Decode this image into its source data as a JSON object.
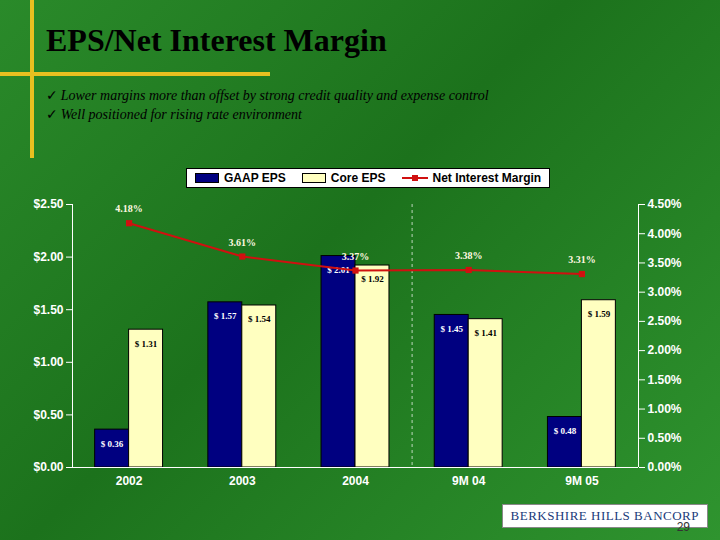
{
  "chart_data": {
    "type": "bar",
    "title": "EPS/Net Interest Margin",
    "annotations": [
      "Lower margins more than offset by strong credit quality and expense control",
      "Well positioned for rising rate environment"
    ],
    "categories": [
      "2002",
      "2003",
      "2004",
      "9M 04",
      "9M 05"
    ],
    "series": [
      {
        "name": "GAAP EPS",
        "type": "bar",
        "color": "#000080",
        "values": [
          0.36,
          1.57,
          2.01,
          1.45,
          0.48
        ],
        "value_labels": [
          "$ 0.36",
          "$ 1.57",
          "$ 2.01",
          "$ 1.45",
          "$ 0.48"
        ]
      },
      {
        "name": "Core EPS",
        "type": "bar",
        "color": "#ffffc0",
        "values": [
          1.31,
          1.54,
          1.92,
          1.41,
          1.59
        ],
        "value_labels": [
          "$ 1.31",
          "$ 1.54",
          "$ 1.92",
          "$ 1.41",
          "$ 1.59"
        ]
      },
      {
        "name": "Net Interest Margin",
        "type": "line",
        "axis": "y2",
        "color": "#d01010",
        "marker": "square",
        "values": [
          4.18,
          3.61,
          3.37,
          3.38,
          3.31
        ],
        "value_labels": [
          "4.18%",
          "3.61%",
          "3.37%",
          "3.38%",
          "3.31%"
        ]
      }
    ],
    "ylim": [
      0,
      2.5
    ],
    "yticks": [
      {
        "value": 0,
        "label": "$0.00"
      },
      {
        "value": 0.5,
        "label": "$0.50"
      },
      {
        "value": 1,
        "label": "$1.00"
      },
      {
        "value": 1.5,
        "label": "$1.50"
      },
      {
        "value": 2,
        "label": "$2.00"
      },
      {
        "value": 2.5,
        "label": "$2.50"
      }
    ],
    "y2lim": [
      0,
      4.5
    ],
    "y2ticks": [
      {
        "value": 0,
        "label": "0.00%"
      },
      {
        "value": 0.5,
        "label": "0.50%"
      },
      {
        "value": 1,
        "label": "1.00%"
      },
      {
        "value": 1.5,
        "label": "1.50%"
      },
      {
        "value": 2,
        "label": "2.00%"
      },
      {
        "value": 2.5,
        "label": "2.50%"
      },
      {
        "value": 3,
        "label": "3.00%"
      },
      {
        "value": 3.5,
        "label": "3.50%"
      },
      {
        "value": 4,
        "label": "4.00%"
      },
      {
        "value": 4.5,
        "label": "4.50%"
      }
    ],
    "data_labels": true,
    "grid": false,
    "legend": "top",
    "footer": {
      "logo": "BERKSHIRE HILLS BANCORP",
      "page_number": "29"
    }
  }
}
